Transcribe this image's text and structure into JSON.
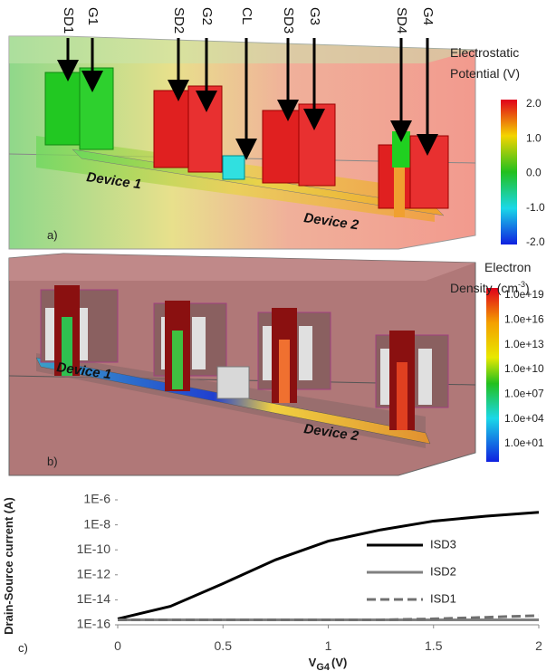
{
  "panel_a": {
    "label": "a)",
    "gate_labels": [
      "SD1",
      "G1",
      "SD2",
      "G2",
      "CL",
      "SD3",
      "G3",
      "SD4",
      "G4"
    ],
    "device_labels": [
      "Device 1",
      "Device 2"
    ],
    "colorbar": {
      "title_line1": "Electrostatic",
      "title_line2": "Potential (V)",
      "ticks": [
        "2.0",
        "1.0",
        "0.0",
        "-1.0",
        "-2.0"
      ]
    }
  },
  "panel_b": {
    "label": "b)",
    "device_labels": [
      "Device 1",
      "Device 2"
    ],
    "colorbar": {
      "title_line1": "Electron",
      "title_line2": "Density",
      "title_unit": "(cm",
      "title_exponent": "-3",
      "title_close": ")",
      "ticks": [
        "1.0e+19",
        "1.0e+16",
        "1.0e+13",
        "1.0e+10",
        "1.0e+07",
        "1.0e+04",
        "1.0e+01"
      ]
    }
  },
  "chart_data": {
    "type": "line",
    "panel_label": "c)",
    "y_label": "Drain-Source current (A)",
    "x_label": "V",
    "x_label_subscript": "G4",
    "x_label_unit": "(V)",
    "log_y": true,
    "x": [
      0,
      0.25,
      0.5,
      0.75,
      1,
      1.25,
      1.5,
      1.75,
      2
    ],
    "series": [
      {
        "name": "ISD3",
        "color": "#000000",
        "line_style": "solid",
        "values": [
          3e-16,
          3e-15,
          2e-13,
          1.6e-11,
          5e-10,
          4e-09,
          2e-08,
          5e-08,
          1e-07
        ]
      },
      {
        "name": "ISD2",
        "color": "#808080",
        "line_style": "solid",
        "values": [
          2.5e-16,
          2.5e-16,
          2.5e-16,
          2.5e-16,
          2.5e-16,
          2.5e-16,
          2.5e-16,
          2.5e-16,
          2.5e-16
        ]
      },
      {
        "name": "ISD1",
        "color": "#707070",
        "line_style": "dashed",
        "values": [
          2.5e-16,
          2.5e-16,
          2.5e-16,
          2.5e-16,
          2.5e-16,
          2.5e-16,
          3e-16,
          4e-16,
          5.5e-16
        ]
      }
    ],
    "xlim": [
      0,
      2
    ],
    "xticks": [
      0,
      0.5,
      1,
      1.5,
      2
    ],
    "ylim": [
      1e-16,
      1e-06
    ],
    "yticks": [
      {
        "value": 1e-16,
        "label": "1E-16"
      },
      {
        "value": 1e-14,
        "label": "1E-14"
      },
      {
        "value": 1e-12,
        "label": "1E-12"
      },
      {
        "value": 1e-10,
        "label": "1E-10"
      },
      {
        "value": 1e-08,
        "label": "1E-8"
      },
      {
        "value": 1e-06,
        "label": "1E-6"
      }
    ],
    "legend": "right"
  }
}
